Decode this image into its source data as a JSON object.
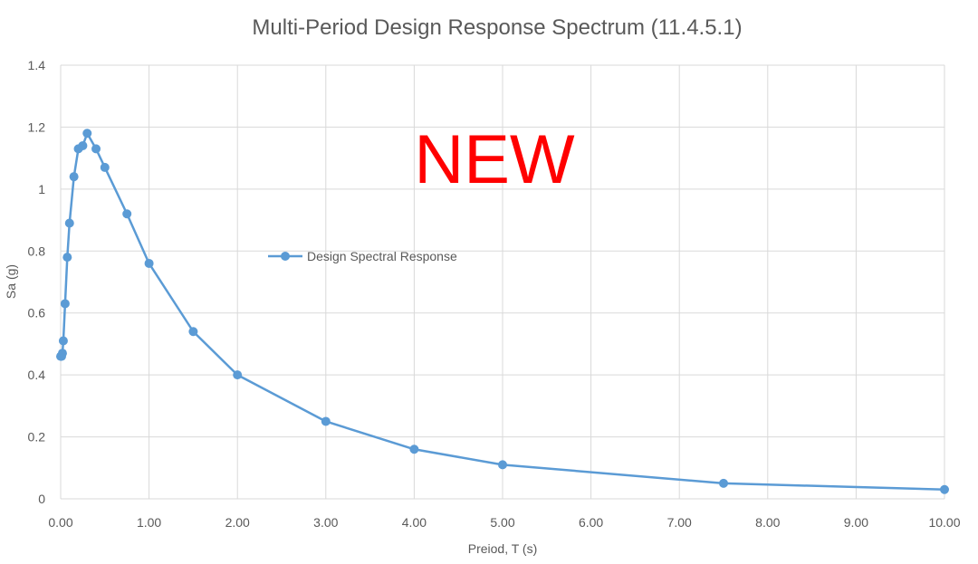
{
  "chart_data": {
    "type": "scatter",
    "title": "Multi-Period Design Response Spectrum (11.4.5.1)",
    "xlabel": "Preiod, T (s)",
    "ylabel": "Sa (g)",
    "xlim": [
      0,
      10
    ],
    "ylim": [
      0,
      1.4
    ],
    "x_ticks": [
      "0.00",
      "1.00",
      "2.00",
      "3.00",
      "4.00",
      "5.00",
      "6.00",
      "7.00",
      "8.00",
      "9.00",
      "10.00"
    ],
    "y_ticks": [
      "0",
      "0.2",
      "0.4",
      "0.6",
      "0.8",
      "1",
      "1.2",
      "1.4"
    ],
    "grid": true,
    "legend_position": "center-left",
    "annotation": "NEW",
    "series": [
      {
        "name": "Design Spectral Response",
        "color": "#5b9bd5",
        "x": [
          0.0,
          0.01,
          0.02,
          0.03,
          0.05,
          0.075,
          0.1,
          0.15,
          0.2,
          0.25,
          0.3,
          0.4,
          0.5,
          0.75,
          1.0,
          1.5,
          2.0,
          3.0,
          4.0,
          5.0,
          7.5,
          10.0
        ],
        "y": [
          0.46,
          0.46,
          0.47,
          0.51,
          0.63,
          0.78,
          0.89,
          1.04,
          1.13,
          1.14,
          1.18,
          1.13,
          1.07,
          0.92,
          0.76,
          0.54,
          0.4,
          0.25,
          0.16,
          0.11,
          0.05,
          0.03
        ]
      }
    ]
  },
  "colors": {
    "series": "#5b9bd5",
    "annotation": "#ff0000",
    "grid": "#d9d9d9",
    "text": "#595959"
  }
}
